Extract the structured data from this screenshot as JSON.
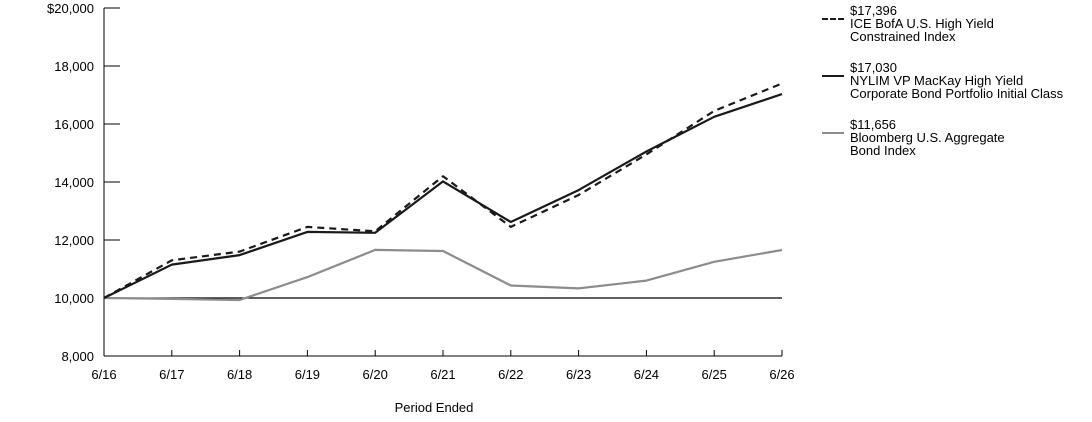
{
  "chart_data": {
    "type": "line",
    "xlabel": "Period Ended",
    "ylabel": "",
    "ylim": [
      8000,
      20000
    ],
    "y_ticks": [
      "$20,000",
      "18,000",
      "16,000",
      "14,000",
      "12,000",
      "10,000",
      "8,000"
    ],
    "y_tick_values": [
      20000,
      18000,
      16000,
      14000,
      12000,
      10000,
      8000
    ],
    "categories": [
      "6/16",
      "6/17",
      "6/18",
      "6/19",
      "6/20",
      "6/21",
      "6/22",
      "6/23",
      "6/24",
      "6/25",
      "6/26"
    ],
    "reference_line": 10000,
    "legend_position": "top-right",
    "series": [
      {
        "name": "ICE BofA U.S. High Yield\nConstrained Index",
        "ending_value": "$17,396",
        "style": "dashed",
        "color": "#1a1a1a",
        "values": [
          10000,
          11300,
          11600,
          12450,
          12300,
          14200,
          12450,
          13550,
          14950,
          16450,
          17396
        ]
      },
      {
        "name": "NYLIM VP MacKay High Yield\nCorporate Bond Portfolio Initial Class",
        "ending_value": "$17,030",
        "style": "solid",
        "color": "#1a1a1a",
        "values": [
          10000,
          11150,
          11480,
          12280,
          12250,
          14020,
          12620,
          13720,
          15050,
          16250,
          17030
        ]
      },
      {
        "name": "Bloomberg U.S. Aggregate\nBond Index",
        "ending_value": "$11,656",
        "style": "solid",
        "color": "#8c8c8c",
        "values": [
          10000,
          9970,
          9930,
          10720,
          11660,
          11620,
          10430,
          10330,
          10600,
          11250,
          11656
        ]
      }
    ]
  }
}
